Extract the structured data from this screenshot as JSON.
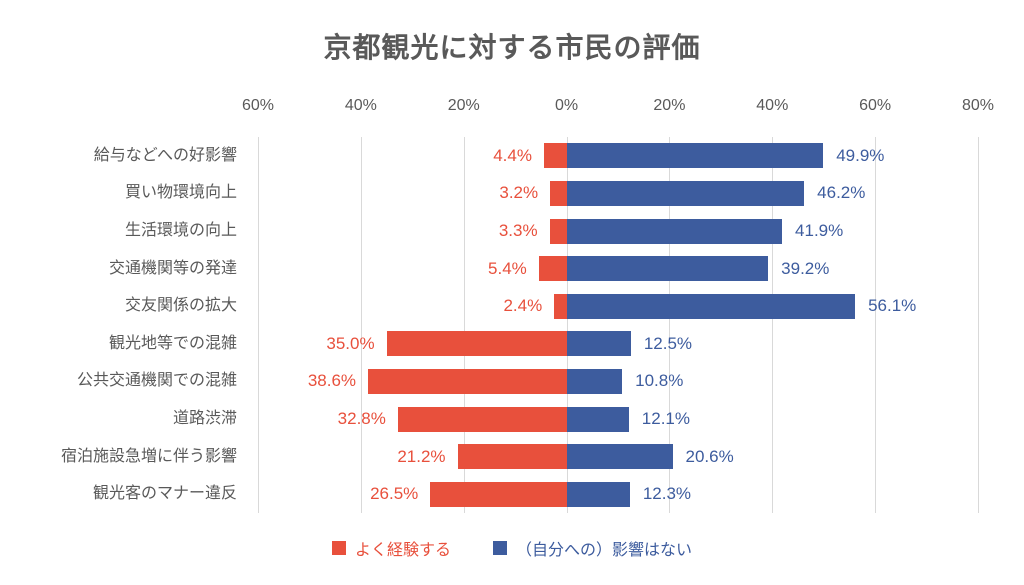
{
  "chart_data": {
    "type": "bar",
    "variant": "diverging-horizontal",
    "title": "京都観光に対する市民の評価",
    "x_axis": {
      "tick_labels": [
        "60%",
        "40%",
        "20%",
        "0%",
        "20%",
        "40%",
        "60%",
        "80%"
      ],
      "left_extent_pct": 60,
      "right_extent_pct": 80,
      "tick_step_pct": 20,
      "grid": true,
      "ticks_position": "top"
    },
    "categories": [
      "給与などへの好影響",
      "買い物環境向上",
      "生活環境の向上",
      "交通機関等の発達",
      "交友関係の拡大",
      "観光地等での混雑",
      "公共交通機関での混雑",
      "道路渋滞",
      "宿泊施設急増に伴う影響",
      "観光客のマナー違反"
    ],
    "series": [
      {
        "name": "よく経験する",
        "direction": "left",
        "color": "#E8503C",
        "values": [
          4.4,
          3.2,
          3.3,
          5.4,
          2.4,
          35.0,
          38.6,
          32.8,
          21.2,
          26.5
        ],
        "labels": [
          "4.4%",
          "3.2%",
          "3.3%",
          "5.4%",
          "2.4%",
          "35.0%",
          "38.6%",
          "32.8%",
          "21.2%",
          "26.5%"
        ]
      },
      {
        "name": "（自分への）影響はない",
        "direction": "right",
        "color": "#3D5C9E",
        "values": [
          49.9,
          46.2,
          41.9,
          39.2,
          56.1,
          12.5,
          10.8,
          12.1,
          20.6,
          12.3
        ],
        "labels": [
          "49.9%",
          "46.2%",
          "41.9%",
          "39.2%",
          "56.1%",
          "12.5%",
          "10.8%",
          "12.1%",
          "20.6%",
          "12.3%"
        ]
      }
    ],
    "legend": {
      "position": "bottom",
      "items": [
        {
          "label": "よく経験する",
          "color": "#E8503C"
        },
        {
          "label": "（自分への）影響はない",
          "color": "#3D5C9E"
        }
      ]
    },
    "colors": {
      "grid": "#D9D9D9",
      "title_text": "#595959",
      "axis_text": "#595959",
      "category_text": "#595959",
      "left_value_text": "#E8503C",
      "right_value_text": "#3D5C9E",
      "background": "#FFFFFF"
    }
  }
}
